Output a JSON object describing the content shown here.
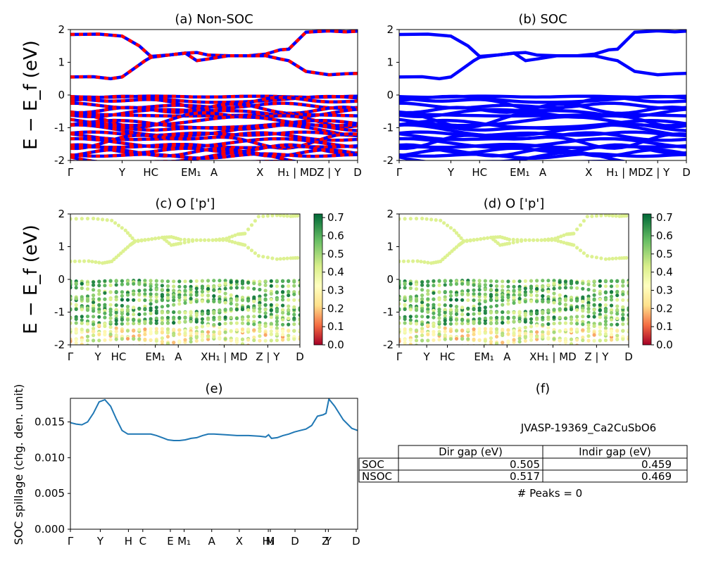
{
  "figure": {
    "material_id": "JVASP-19369_Ca2CuSbO6",
    "peaks_text": "# Peaks = 0"
  },
  "colors": {
    "nonsoc_bands_a": "#ff0000",
    "nonsoc_bands_b": "#0000ff",
    "soc_bands": "#0000ff",
    "spillage_line": "#1f77b4",
    "colormap": "RdYlGn"
  },
  "chart_data": [
    {
      "id": "a",
      "type": "line",
      "title": "(a) Non-SOC",
      "ylabel": "E − E_f (eV)",
      "ylim": [
        -2,
        2
      ],
      "yticks": [
        -2,
        -1,
        0,
        1,
        2
      ],
      "xticks": [
        "Γ",
        "Y",
        "HC",
        "EM₁",
        "A",
        "X",
        "H₁ | MD",
        "Z | Y",
        "D"
      ],
      "xtick_positions": [
        0,
        0.18,
        0.28,
        0.42,
        0.5,
        0.66,
        0.79,
        0.9,
        1.0
      ],
      "series": [
        {
          "values_x": [
            0,
            0.1,
            0.18,
            0.24,
            0.28,
            0.34,
            0.4,
            0.44,
            0.48,
            0.55,
            0.62,
            0.68,
            0.73,
            0.76,
            0.82,
            0.9,
            0.96,
            1.0
          ],
          "values_y": [
            1.85,
            1.86,
            1.8,
            1.5,
            1.18,
            1.22,
            1.28,
            1.3,
            1.22,
            1.2,
            1.2,
            1.25,
            1.38,
            1.4,
            1.92,
            1.96,
            1.93,
            1.95
          ]
        },
        {
          "values_x": [
            0,
            0.08,
            0.14,
            0.18,
            0.22,
            0.26,
            0.28,
            0.34,
            0.4,
            0.44,
            0.48,
            0.55,
            0.62,
            0.68,
            0.73,
            0.76,
            0.82,
            0.9,
            0.96,
            1.0
          ],
          "values_y": [
            0.55,
            0.56,
            0.5,
            0.55,
            0.8,
            1.05,
            1.15,
            1.22,
            1.28,
            1.05,
            1.1,
            1.2,
            1.2,
            1.2,
            1.1,
            1.05,
            0.72,
            0.62,
            0.65,
            0.66
          ]
        }
      ]
    },
    {
      "id": "b",
      "type": "line",
      "title": "(b) SOC",
      "ylim": [
        -2,
        2
      ],
      "yticks": [
        -2,
        -1,
        0,
        1,
        2
      ],
      "xticks": [
        "Γ",
        "Y",
        "HC",
        "EM₁",
        "A",
        "X",
        "H₁ | MD",
        "Z | Y",
        "D"
      ],
      "xtick_positions": [
        0,
        0.18,
        0.28,
        0.42,
        0.5,
        0.66,
        0.79,
        0.9,
        1.0
      ]
    },
    {
      "id": "c",
      "type": "scatter",
      "title": "(c)  O ['p']",
      "ylabel": "E − E_f (eV)",
      "ylim": [
        -2,
        2
      ],
      "yticks": [
        -2,
        -1,
        0,
        1,
        2
      ],
      "xticks": [
        "Γ",
        "Y",
        "HC",
        "EM₁",
        "A",
        "XH₁ | MD",
        "Z | Y",
        "D"
      ],
      "xtick_positions": [
        0,
        0.12,
        0.21,
        0.37,
        0.47,
        0.67,
        0.86,
        1.0
      ],
      "colorbar_ticks": [
        "0.0",
        "0.1",
        "0.2",
        "0.3",
        "0.4",
        "0.5",
        "0.6",
        "0.7"
      ]
    },
    {
      "id": "d",
      "type": "scatter",
      "title": "(d) O ['p']",
      "ylim": [
        -2,
        2
      ],
      "yticks": [
        -2,
        -1,
        0,
        1,
        2
      ],
      "xticks": [
        "Γ",
        "Y",
        "HC",
        "EM₁",
        "A",
        "XH₁ | MD",
        "Z | Y",
        "D"
      ],
      "xtick_positions": [
        0,
        0.12,
        0.21,
        0.37,
        0.47,
        0.67,
        0.86,
        1.0
      ],
      "colorbar_ticks": [
        "0.0",
        "0.1",
        "0.2",
        "0.3",
        "0.4",
        "0.5",
        "0.6",
        "0.7"
      ]
    },
    {
      "id": "e",
      "type": "line",
      "title": "(e)",
      "ylabel": "SOC spillage (chg. den. unit)",
      "ylim": [
        0,
        0.0183
      ],
      "yticks": [
        "0.000",
        "0.005",
        "0.010",
        "0.015"
      ],
      "xticks": [
        "Γ",
        "Y",
        "H",
        "C",
        "E",
        "M₁",
        "A",
        "X",
        "H₁",
        "M",
        "D",
        "Z",
        "Y",
        "D"
      ],
      "xtick_positions": [
        0,
        0.104,
        0.202,
        0.252,
        0.348,
        0.396,
        0.492,
        0.588,
        0.689,
        0.696,
        0.782,
        0.888,
        0.898,
        0.995
      ],
      "x": [
        0,
        0.02,
        0.04,
        0.06,
        0.08,
        0.1,
        0.12,
        0.14,
        0.16,
        0.18,
        0.2,
        0.22,
        0.25,
        0.28,
        0.3,
        0.32,
        0.34,
        0.36,
        0.38,
        0.4,
        0.42,
        0.44,
        0.46,
        0.48,
        0.5,
        0.54,
        0.58,
        0.62,
        0.66,
        0.68,
        0.69,
        0.7,
        0.72,
        0.74,
        0.76,
        0.78,
        0.8,
        0.82,
        0.84,
        0.86,
        0.88,
        0.89,
        0.9,
        0.92,
        0.95,
        0.98,
        1.0
      ],
      "y": [
        0.0149,
        0.0147,
        0.0146,
        0.015,
        0.0162,
        0.0178,
        0.0181,
        0.0172,
        0.0154,
        0.0138,
        0.0133,
        0.0133,
        0.0133,
        0.0133,
        0.0131,
        0.0128,
        0.0125,
        0.0124,
        0.0124,
        0.0125,
        0.0127,
        0.0128,
        0.0131,
        0.0133,
        0.0133,
        0.0132,
        0.0131,
        0.0131,
        0.013,
        0.0129,
        0.0132,
        0.0127,
        0.0128,
        0.0131,
        0.0133,
        0.0136,
        0.0138,
        0.014,
        0.0145,
        0.0158,
        0.016,
        0.0162,
        0.0182,
        0.0172,
        0.0153,
        0.0141,
        0.0138
      ]
    },
    {
      "id": "f",
      "type": "table",
      "title": "(f)",
      "columns": [
        "",
        "Dir gap (eV)",
        "Indir gap (eV)"
      ],
      "rows": [
        [
          "SOC",
          "0.505",
          "0.459"
        ],
        [
          "NSOC",
          "0.517",
          "0.469"
        ]
      ]
    }
  ]
}
